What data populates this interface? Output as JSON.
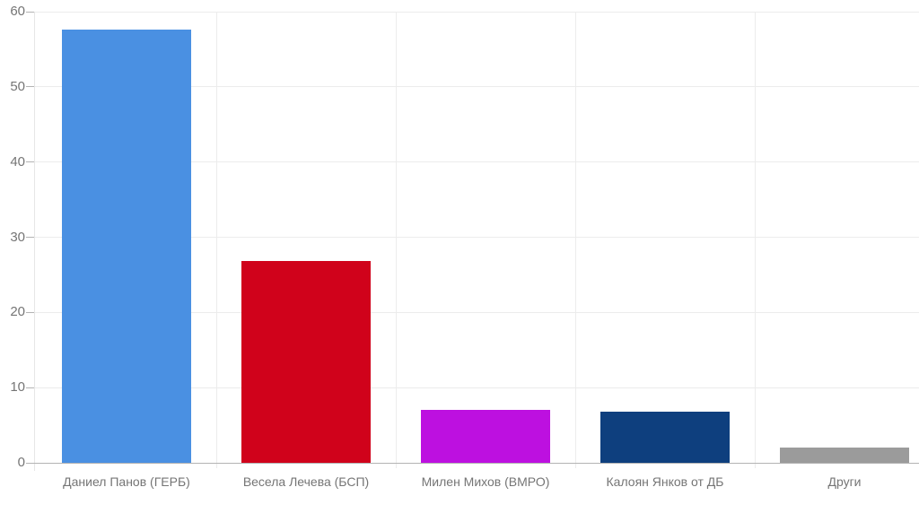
{
  "chart_data": {
    "type": "bar",
    "title": "",
    "xlabel": "",
    "ylabel": "",
    "categories": [
      "Даниел Панов (ГЕРБ)",
      "Весела Лечева (БСП)",
      "Милен Михов (ВМРО)",
      "Калоян Янков от ДБ",
      "Други"
    ],
    "values": [
      57.6,
      26.8,
      7.0,
      6.8,
      2.0
    ],
    "bar_colors": [
      "#4a90e2",
      "#d0021b",
      "#bd10e0",
      "#0e3f7e",
      "#9b9b9b"
    ],
    "ylim": [
      0,
      60
    ],
    "yticks": [
      0,
      10,
      20,
      30,
      40,
      50,
      60
    ],
    "grid": true,
    "legend": "none"
  },
  "style": {
    "background": "#ffffff",
    "grid_color": "#ececec",
    "vgrid_color": "#ececec",
    "axis_line_color": "#b3b3b3",
    "tick_color": "#b3b3b3",
    "y_axis_line_color": "#e6e6e6",
    "label_color": "#757575"
  }
}
